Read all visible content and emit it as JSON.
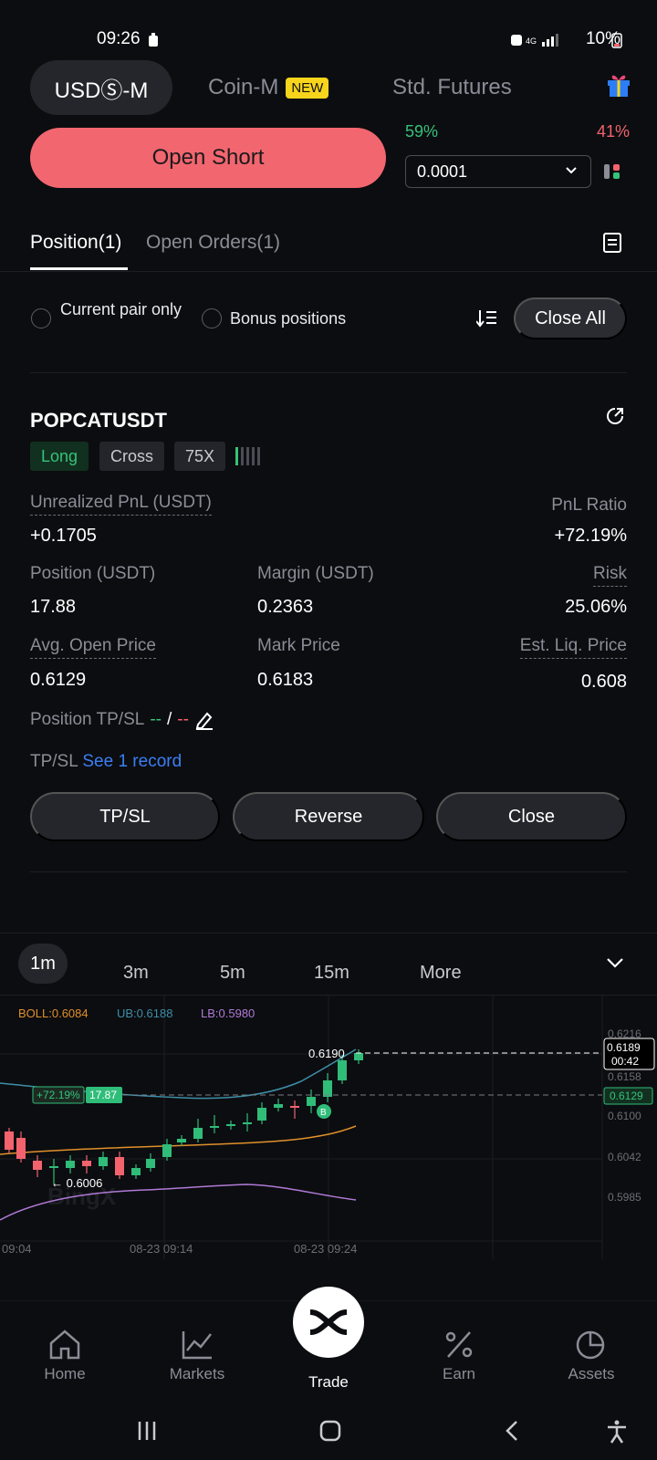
{
  "status_bar": {
    "time": "09:26",
    "battery": "10%"
  },
  "market_tabs": [
    {
      "label": "USDⓈ-M"
    },
    {
      "label": "Coin-M",
      "badge": "NEW"
    },
    {
      "label": "Std. Futures"
    }
  ],
  "order": {
    "open_short_label": "Open Short",
    "long_pct": "59%",
    "short_pct": "41%",
    "quantity_step": "0.0001"
  },
  "position_tabs": [
    {
      "label": "Position(1)"
    },
    {
      "label": "Open Orders(1)"
    }
  ],
  "filters": {
    "current_pair": "Current pair only",
    "bonus": "Bonus positions",
    "close_all": "Close All"
  },
  "position": {
    "symbol": "POPCATUSDT",
    "side": "Long",
    "margin_mode": "Cross",
    "leverage": "75X",
    "unrealized_pnl_label": "Unrealized PnL (USDT)",
    "unrealized_pnl": "+0.1705",
    "pnl_ratio_label": "PnL Ratio",
    "pnl_ratio": "+72.19%",
    "position_label": "Position (USDT)",
    "position_value": "17.88",
    "margin_label": "Margin (USDT)",
    "margin_value": "0.2363",
    "risk_label": "Risk",
    "risk_value": "25.06%",
    "avg_open_label": "Avg. Open Price",
    "avg_open_value": "0.6129",
    "mark_label": "Mark Price",
    "mark_value": "0.6183",
    "liq_label": "Est. Liq. Price",
    "liq_value": "0.608",
    "tpsl_label": "Position TP/SL",
    "tpsl_tp": "--",
    "tpsl_sep": "/",
    "tpsl_sl": "--",
    "tpsl_record_label": "TP/SL",
    "tpsl_record_link": "See 1 record",
    "buttons": {
      "tpsl": "TP/SL",
      "reverse": "Reverse",
      "close": "Close"
    }
  },
  "timeframes": [
    "1m",
    "3m",
    "5m",
    "15m",
    "More"
  ],
  "chart": {
    "boll": "BOLL:0.6084",
    "ub": "UB:0.6188",
    "lb": "LB:0.5980",
    "price_ticks": [
      "0.6216",
      "0.6158",
      "0.6100",
      "0.6042",
      "0.5985"
    ],
    "time_ticks": [
      "09:04",
      "08-23 09:14",
      "08-23 09:24"
    ],
    "current_price": "0.6189",
    "countdown": "00:42",
    "entry_price": "0.6129",
    "high_label": "0.6190",
    "low_label": "← 0.6006",
    "pnl_tag": "+72.19%",
    "size_tag": "17.87",
    "buy_marker": "B",
    "watermark": "BingX"
  },
  "chart_colors": {
    "up": "#2fbd79",
    "down": "#f2636e",
    "boll": "#e0902a",
    "ub": "#3e8ea8",
    "lb": "#b07ad6"
  },
  "bottom_nav": [
    {
      "label": "Home"
    },
    {
      "label": "Markets"
    },
    {
      "label": "Trade"
    },
    {
      "label": "Earn"
    },
    {
      "label": "Assets"
    }
  ]
}
